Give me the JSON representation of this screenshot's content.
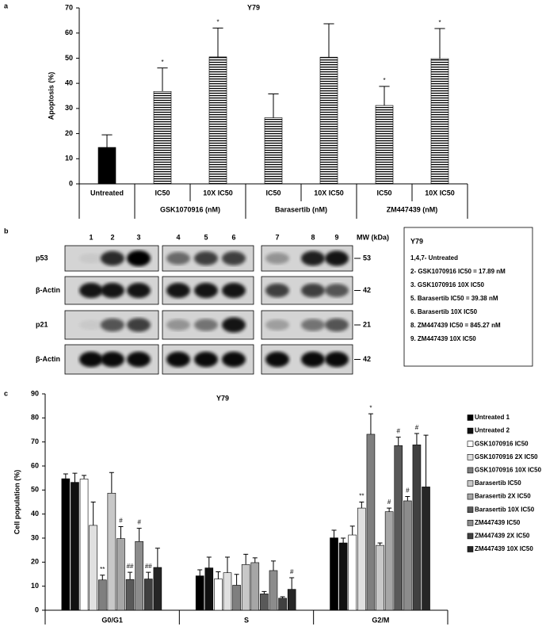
{
  "chart_data": [
    {
      "type": "bar",
      "panel_label": "a",
      "title": "Y79",
      "y_label": "Apoptosis (%)",
      "categories": [
        "Untreated",
        "IC50",
        "10X IC50",
        "IC50",
        "10X IC50",
        "IC50",
        "10X IC50"
      ],
      "groups": [
        "GSK1070916 (nM)",
        "Barasertib (nM)",
        "ZM447439 (nM)"
      ],
      "values": [
        14.5,
        36.8,
        50.5,
        26.3,
        50.4,
        31.2,
        49.8
      ],
      "errors": [
        5,
        9.3,
        11.5,
        9.5,
        13.3,
        7.6,
        12
      ],
      "annotations": [
        null,
        "*",
        "*",
        null,
        null,
        "*",
        "*"
      ],
      "fills": [
        "solid",
        "hatched",
        "hatched",
        "hatched",
        "hatched",
        "hatched",
        "hatched"
      ],
      "color": "#000000",
      "ylim": [
        0,
        70
      ],
      "yticks": [
        0,
        10,
        20,
        30,
        40,
        50,
        60,
        70
      ]
    },
    {
      "type": "bar",
      "panel_label": "c",
      "title": "Y79",
      "y_label": "Cell population (%)",
      "categories": [
        "G0/G1",
        "S",
        "G2/M"
      ],
      "series": [
        {
          "name": "Untreated 1",
          "color": "#000000",
          "values": [
            54.7,
            14.3,
            30.1
          ],
          "errors": [
            2,
            2.5,
            3.2
          ],
          "annotations": [
            null,
            null,
            null
          ]
        },
        {
          "name": "Untreated 2",
          "color": "#111111",
          "values": [
            53.2,
            17.6,
            28
          ],
          "errors": [
            3.8,
            4.5,
            2
          ],
          "annotations": [
            null,
            null,
            null
          ]
        },
        {
          "name": "GSK1070916 IC50",
          "color": "#ffffff",
          "values": [
            54.6,
            13,
            31.3
          ],
          "errors": [
            1.5,
            3,
            3.7
          ],
          "annotations": [
            null,
            null,
            null
          ]
        },
        {
          "name": "GSK1070916 2X IC50",
          "color": "#e0e0e0",
          "values": [
            35.3,
            15.6,
            42.5
          ],
          "errors": [
            9.7,
            6.5,
            2.5
          ],
          "annotations": [
            null,
            null,
            "**"
          ]
        },
        {
          "name": "GSK1070916 10X IC50",
          "color": "#7f7f7f",
          "values": [
            12.6,
            10.4,
            73.2
          ],
          "errors": [
            2,
            4.5,
            8.5
          ],
          "annotations": [
            "**",
            null,
            "*"
          ]
        },
        {
          "name": "Barasertib IC50",
          "color": "#c8c8c8",
          "values": [
            48.7,
            19,
            27
          ],
          "errors": [
            8.6,
            4.3,
            1
          ],
          "annotations": [
            null,
            null,
            null
          ]
        },
        {
          "name": "Barasertib 2X IC50",
          "color": "#a6a6a6",
          "values": [
            29.8,
            19.8,
            41
          ],
          "errors": [
            5,
            2,
            1.5
          ],
          "annotations": [
            "#",
            null,
            "#"
          ]
        },
        {
          "name": "Barasertib 10X IC50",
          "color": "#595959",
          "values": [
            12.8,
            6.8,
            68.5
          ],
          "errors": [
            3,
            1,
            3.5
          ],
          "annotations": [
            "##",
            null,
            "#"
          ]
        },
        {
          "name": "ZM447439 IC50",
          "color": "#8c8c8c",
          "values": [
            28.6,
            16.5,
            45.5
          ],
          "errors": [
            5.5,
            4,
            1.8
          ],
          "annotations": [
            "#",
            null,
            "#"
          ]
        },
        {
          "name": "ZM447439 2X IC50",
          "color": "#404040",
          "values": [
            13,
            5,
            68.8
          ],
          "errors": [
            2.8,
            0.6,
            4.7
          ],
          "annotations": [
            "##",
            null,
            "#"
          ]
        },
        {
          "name": "ZM447439 10X IC50",
          "color": "#262626",
          "values": [
            17.8,
            8.7,
            51.3
          ],
          "errors": [
            8,
            4.8,
            21.5
          ],
          "annotations": [
            null,
            "#",
            null
          ]
        }
      ],
      "ylim": [
        0,
        90
      ],
      "yticks": [
        0,
        10,
        20,
        30,
        40,
        50,
        60,
        70,
        80,
        90
      ]
    }
  ],
  "blot": {
    "panel_label": "b",
    "lanes": [
      1,
      2,
      3,
      4,
      5,
      6,
      7,
      8,
      9
    ],
    "mw_header": "MW (kDa)",
    "rows": [
      {
        "label": "p53",
        "mw": 53
      },
      {
        "label": "β-Actin",
        "mw": 42
      },
      {
        "label": "p21",
        "mw": 21
      },
      {
        "label": "β-Actin",
        "mw": 42
      }
    ],
    "legend": {
      "title": "Y79",
      "lines": [
        "1,4,7- Untreated",
        "2- GSK1070916 IC50 = 17.89 nM",
        "3. GSK1070916 10X IC50",
        "5. Barasertib IC50 = 39.38 nM",
        "6. Barasertib 10X IC50",
        "8. ZM447439 IC50 = 845.27 nM",
        "9. ZM447439 10X IC50"
      ]
    }
  }
}
